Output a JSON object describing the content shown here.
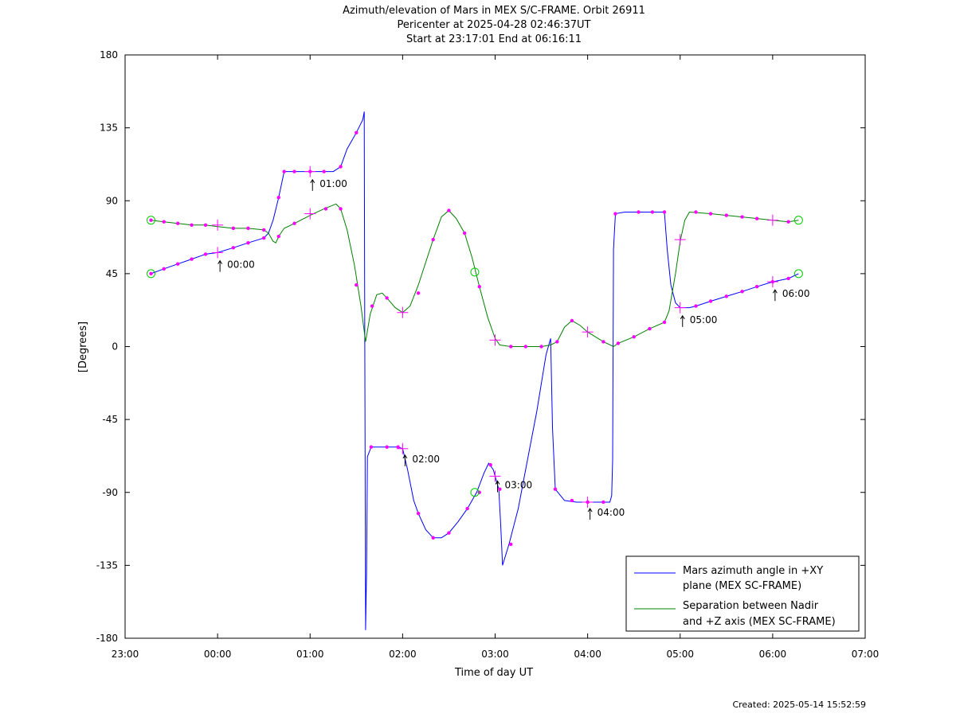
{
  "chart_data": {
    "type": "line",
    "title": "Azimuth/elevation of Mars in MEX S/C-FRAME.  Orbit 26911",
    "subtitle1": "Pericenter at 2025-04-28 02:46:37UT",
    "subtitle2": "Start at 23:17:01 End at 06:16:11",
    "xlabel": "Time of day UT",
    "ylabel": "[Degrees]",
    "xlim": [
      23.0,
      31.0
    ],
    "ylim": [
      -180,
      180
    ],
    "x_ticks": [
      23,
      24,
      25,
      26,
      27,
      28,
      29,
      30,
      31
    ],
    "x_tick_labels": [
      "23:00",
      "00:00",
      "01:00",
      "02:00",
      "03:00",
      "04:00",
      "05:00",
      "06:00",
      "07:00"
    ],
    "y_ticks": [
      -180,
      -135,
      -90,
      -45,
      0,
      45,
      90,
      135,
      180
    ],
    "y_tick_labels": [
      "-180",
      "-135",
      "-90",
      "-45",
      "0",
      "45",
      "90",
      "135",
      "180"
    ],
    "grid": false,
    "legend_position": "bottom-right",
    "series": [
      {
        "name": "Mars azimuth angle in +XY plane (MEX SC-FRAME)",
        "legend_line1": "Mars azimuth angle in +XY",
        "legend_line2": "plane (MEX SC-FRAME)",
        "color": "#0000ff",
        "points": [
          [
            23.28,
            45
          ],
          [
            23.42,
            48
          ],
          [
            23.57,
            51
          ],
          [
            23.72,
            54
          ],
          [
            23.87,
            57
          ],
          [
            24.0,
            58
          ],
          [
            24.17,
            61
          ],
          [
            24.33,
            64
          ],
          [
            24.5,
            67
          ],
          [
            24.55,
            70
          ],
          [
            24.6,
            78
          ],
          [
            24.66,
            92
          ],
          [
            24.72,
            108
          ],
          [
            24.78,
            108
          ],
          [
            24.88,
            108
          ],
          [
            25.0,
            108
          ],
          [
            25.15,
            108
          ],
          [
            25.25,
            108
          ],
          [
            25.33,
            111
          ],
          [
            25.4,
            122
          ],
          [
            25.5,
            132
          ],
          [
            25.57,
            140
          ],
          [
            25.585,
            145
          ],
          [
            25.59,
            20
          ],
          [
            25.6,
            -175
          ],
          [
            25.61,
            -140
          ],
          [
            25.62,
            -68
          ],
          [
            25.66,
            -62
          ],
          [
            25.72,
            -62
          ],
          [
            25.83,
            -62
          ],
          [
            25.95,
            -62
          ],
          [
            26.0,
            -63
          ],
          [
            26.05,
            -75
          ],
          [
            26.12,
            -95
          ],
          [
            26.17,
            -103
          ],
          [
            26.25,
            -113
          ],
          [
            26.33,
            -118
          ],
          [
            26.42,
            -118
          ],
          [
            26.5,
            -115
          ],
          [
            26.6,
            -108
          ],
          [
            26.7,
            -100
          ],
          [
            26.8,
            -90
          ],
          [
            26.88,
            -78
          ],
          [
            26.93,
            -72
          ],
          [
            26.98,
            -76
          ],
          [
            27.0,
            -80
          ],
          [
            27.04,
            -88
          ],
          [
            27.06,
            -110
          ],
          [
            27.08,
            -135
          ],
          [
            27.15,
            -122
          ],
          [
            27.25,
            -100
          ],
          [
            27.35,
            -70
          ],
          [
            27.45,
            -40
          ],
          [
            27.55,
            -5
          ],
          [
            27.6,
            5
          ],
          [
            27.62,
            -50
          ],
          [
            27.65,
            -88
          ],
          [
            27.75,
            -95
          ],
          [
            27.88,
            -96
          ],
          [
            28.0,
            -96
          ],
          [
            28.13,
            -96
          ],
          [
            28.24,
            -96
          ],
          [
            28.26,
            -92
          ],
          [
            28.27,
            -70
          ],
          [
            28.28,
            60
          ],
          [
            28.3,
            82
          ],
          [
            28.4,
            83
          ],
          [
            28.55,
            83
          ],
          [
            28.7,
            83
          ],
          [
            28.83,
            83
          ],
          [
            28.86,
            60
          ],
          [
            28.9,
            38
          ],
          [
            28.95,
            27
          ],
          [
            29.0,
            24
          ],
          [
            29.1,
            24
          ],
          [
            29.17,
            25
          ],
          [
            29.33,
            28
          ],
          [
            29.5,
            31
          ],
          [
            29.67,
            34
          ],
          [
            29.83,
            37
          ],
          [
            30.0,
            40
          ],
          [
            30.17,
            42
          ],
          [
            30.28,
            45
          ]
        ],
        "markers": [
          [
            23.28,
            45
          ],
          [
            23.42,
            48
          ],
          [
            23.57,
            51
          ],
          [
            23.72,
            54
          ],
          [
            23.87,
            57
          ],
          [
            24.17,
            61
          ],
          [
            24.33,
            64
          ],
          [
            24.5,
            67
          ],
          [
            24.66,
            92
          ],
          [
            24.72,
            108
          ],
          [
            24.83,
            108
          ],
          [
            25.0,
            108
          ],
          [
            25.15,
            108
          ],
          [
            25.33,
            111
          ],
          [
            25.5,
            132
          ],
          [
            25.66,
            -62
          ],
          [
            25.83,
            -62
          ],
          [
            25.95,
            -62
          ],
          [
            26.17,
            -103
          ],
          [
            26.33,
            -118
          ],
          [
            26.5,
            -115
          ],
          [
            26.7,
            -100
          ],
          [
            26.83,
            -90
          ],
          [
            26.95,
            -73
          ],
          [
            27.05,
            -88
          ],
          [
            27.17,
            -122
          ],
          [
            27.65,
            -88
          ],
          [
            27.83,
            -95
          ],
          [
            28.0,
            -96
          ],
          [
            28.17,
            -96
          ],
          [
            28.3,
            82
          ],
          [
            28.55,
            83
          ],
          [
            28.7,
            83
          ],
          [
            28.83,
            83
          ],
          [
            29.17,
            25
          ],
          [
            29.33,
            28
          ],
          [
            29.5,
            31
          ],
          [
            29.67,
            34
          ],
          [
            29.83,
            37
          ],
          [
            30.0,
            40
          ],
          [
            30.17,
            42
          ]
        ],
        "hour_crosses": [
          [
            24.0,
            58
          ],
          [
            25.0,
            108
          ],
          [
            26.0,
            -63
          ],
          [
            27.0,
            -80
          ],
          [
            28.0,
            -96
          ],
          [
            29.0,
            24
          ],
          [
            30.0,
            40
          ]
        ],
        "endpoint_circles": [
          [
            23.28,
            45
          ],
          [
            26.78,
            -90
          ],
          [
            30.28,
            45
          ]
        ]
      },
      {
        "name": "Separation between Nadir and +Z axis (MEX SC-FRAME)",
        "legend_line1": "Separation between Nadir",
        "legend_line2": "and +Z axis (MEX SC-FRAME)",
        "color": "#008000",
        "points": [
          [
            23.28,
            78
          ],
          [
            23.42,
            77
          ],
          [
            23.57,
            76
          ],
          [
            23.72,
            75
          ],
          [
            23.87,
            75
          ],
          [
            24.0,
            74
          ],
          [
            24.17,
            73
          ],
          [
            24.33,
            73
          ],
          [
            24.5,
            72
          ],
          [
            24.55,
            70
          ],
          [
            24.6,
            65
          ],
          [
            24.63,
            64
          ],
          [
            24.66,
            68
          ],
          [
            24.72,
            73
          ],
          [
            24.83,
            76
          ],
          [
            25.0,
            81
          ],
          [
            25.15,
            85
          ],
          [
            25.28,
            88
          ],
          [
            25.33,
            85
          ],
          [
            25.4,
            72
          ],
          [
            25.48,
            50
          ],
          [
            25.55,
            25
          ],
          [
            25.6,
            3
          ],
          [
            25.65,
            20
          ],
          [
            25.72,
            32
          ],
          [
            25.78,
            33
          ],
          [
            25.83,
            30
          ],
          [
            25.92,
            24
          ],
          [
            26.0,
            21
          ],
          [
            26.08,
            25
          ],
          [
            26.17,
            38
          ],
          [
            26.33,
            66
          ],
          [
            26.42,
            80
          ],
          [
            26.5,
            84
          ],
          [
            26.58,
            79
          ],
          [
            26.67,
            70
          ],
          [
            26.75,
            55
          ],
          [
            26.83,
            37
          ],
          [
            26.92,
            18
          ],
          [
            27.0,
            5
          ],
          [
            27.05,
            1
          ],
          [
            27.17,
            0
          ],
          [
            27.33,
            0
          ],
          [
            27.5,
            0
          ],
          [
            27.6,
            1
          ],
          [
            27.67,
            3
          ],
          [
            27.75,
            12
          ],
          [
            27.83,
            16
          ],
          [
            27.92,
            13
          ],
          [
            28.0,
            9
          ],
          [
            28.17,
            3
          ],
          [
            28.28,
            0
          ],
          [
            28.33,
            2
          ],
          [
            28.5,
            6
          ],
          [
            28.67,
            11
          ],
          [
            28.83,
            15
          ],
          [
            28.88,
            22
          ],
          [
            28.95,
            45
          ],
          [
            29.0,
            65
          ],
          [
            29.05,
            78
          ],
          [
            29.1,
            83
          ],
          [
            29.33,
            82
          ],
          [
            29.5,
            81
          ],
          [
            29.67,
            80
          ],
          [
            29.83,
            79
          ],
          [
            30.0,
            78
          ],
          [
            30.17,
            77
          ],
          [
            30.28,
            78
          ]
        ],
        "markers": [
          [
            23.28,
            78
          ],
          [
            23.42,
            77
          ],
          [
            23.57,
            76
          ],
          [
            23.72,
            75
          ],
          [
            23.87,
            75
          ],
          [
            24.17,
            73
          ],
          [
            24.33,
            73
          ],
          [
            24.5,
            72
          ],
          [
            24.66,
            68
          ],
          [
            24.83,
            76
          ],
          [
            25.17,
            85
          ],
          [
            25.33,
            85
          ],
          [
            25.5,
            38
          ],
          [
            25.67,
            25
          ],
          [
            25.83,
            30
          ],
          [
            26.17,
            33
          ],
          [
            26.33,
            66
          ],
          [
            26.5,
            84
          ],
          [
            26.67,
            70
          ],
          [
            26.83,
            37
          ],
          [
            27.17,
            0
          ],
          [
            27.33,
            0
          ],
          [
            27.5,
            0
          ],
          [
            27.67,
            3
          ],
          [
            27.83,
            16
          ],
          [
            28.17,
            3
          ],
          [
            28.33,
            2
          ],
          [
            28.5,
            6
          ],
          [
            28.67,
            11
          ],
          [
            28.83,
            15
          ],
          [
            29.17,
            83
          ],
          [
            29.33,
            82
          ],
          [
            29.5,
            81
          ],
          [
            29.67,
            80
          ],
          [
            29.83,
            79
          ],
          [
            30.17,
            77
          ]
        ],
        "hour_crosses": [
          [
            24.0,
            75
          ],
          [
            25.0,
            82
          ],
          [
            26.0,
            21
          ],
          [
            27.0,
            4
          ],
          [
            28.0,
            9
          ],
          [
            29.0,
            66
          ],
          [
            30.0,
            78
          ]
        ],
        "endpoint_circles": [
          [
            23.28,
            78
          ],
          [
            26.78,
            46
          ],
          [
            30.28,
            78
          ]
        ]
      }
    ],
    "annotations": [
      {
        "x": 24.0,
        "y": 53,
        "text": "00:00"
      },
      {
        "x": 25.0,
        "y": 103,
        "text": "01:00"
      },
      {
        "x": 26.0,
        "y": -67,
        "text": "02:00"
      },
      {
        "x": 27.0,
        "y": -83,
        "text": "03:00"
      },
      {
        "x": 28.0,
        "y": -100,
        "text": "04:00"
      },
      {
        "x": 29.0,
        "y": 19,
        "text": "05:00"
      },
      {
        "x": 30.0,
        "y": 35,
        "text": "06:00"
      }
    ],
    "marker_color": "#ff00ff",
    "endpoint_circle_color": "#00cc00",
    "created_text": "Created: 2025-05-14 15:52:59"
  }
}
